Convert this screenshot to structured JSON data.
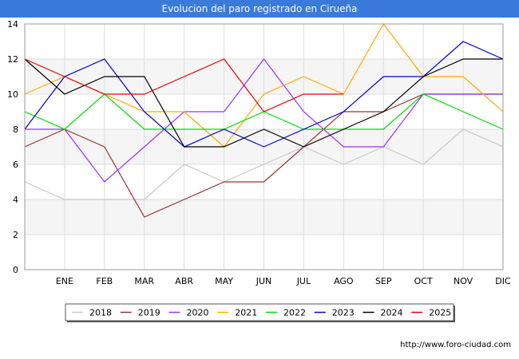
{
  "chart_data": {
    "type": "line",
    "title": "Evolucion del paro registrado en Cirueña",
    "categories": [
      "",
      "ENE",
      "FEB",
      "MAR",
      "ABR",
      "MAY",
      "JUN",
      "JUL",
      "AGO",
      "SEP",
      "OCT",
      "NOV",
      "DIC"
    ],
    "ylim": [
      0,
      14
    ],
    "yticks": [
      0,
      2,
      4,
      6,
      8,
      10,
      12,
      14
    ],
    "grid": true,
    "legend": "bottom",
    "series": [
      {
        "name": "2018",
        "color": "#c8c8c8",
        "values": [
          5,
          4,
          4,
          4,
          6,
          5,
          6,
          7,
          6,
          7,
          6,
          8,
          7
        ]
      },
      {
        "name": "2019",
        "color": "#993333",
        "values": [
          7,
          8,
          7,
          3,
          4,
          5,
          5,
          7,
          9,
          9,
          10,
          10,
          10
        ]
      },
      {
        "name": "2020",
        "color": "#9933ff",
        "values": [
          8,
          8,
          5,
          7,
          9,
          9,
          12,
          9,
          7,
          7,
          10,
          10,
          10
        ]
      },
      {
        "name": "2021",
        "color": "#ffaa00",
        "values": [
          10,
          11,
          10,
          9,
          9,
          7,
          10,
          11,
          10,
          14,
          11,
          11,
          9
        ]
      },
      {
        "name": "2022",
        "color": "#00dd00",
        "values": [
          9,
          8,
          10,
          8,
          8,
          8,
          9,
          8,
          8,
          8,
          10,
          9,
          8
        ]
      },
      {
        "name": "2023",
        "color": "#0000cc",
        "values": [
          8,
          11,
          12,
          9,
          7,
          8,
          7,
          8,
          9,
          11,
          11,
          13,
          12
        ]
      },
      {
        "name": "2024",
        "color": "#000000",
        "values": [
          12,
          10,
          11,
          11,
          7,
          7,
          8,
          7,
          8,
          9,
          11,
          12,
          12
        ]
      },
      {
        "name": "2025",
        "color": "#ee0000",
        "values": [
          12,
          11,
          10,
          10,
          11,
          12,
          9,
          10,
          10,
          null,
          null,
          null,
          null
        ]
      }
    ]
  },
  "footer": {
    "url": "http://www.foro-ciudad.com"
  }
}
